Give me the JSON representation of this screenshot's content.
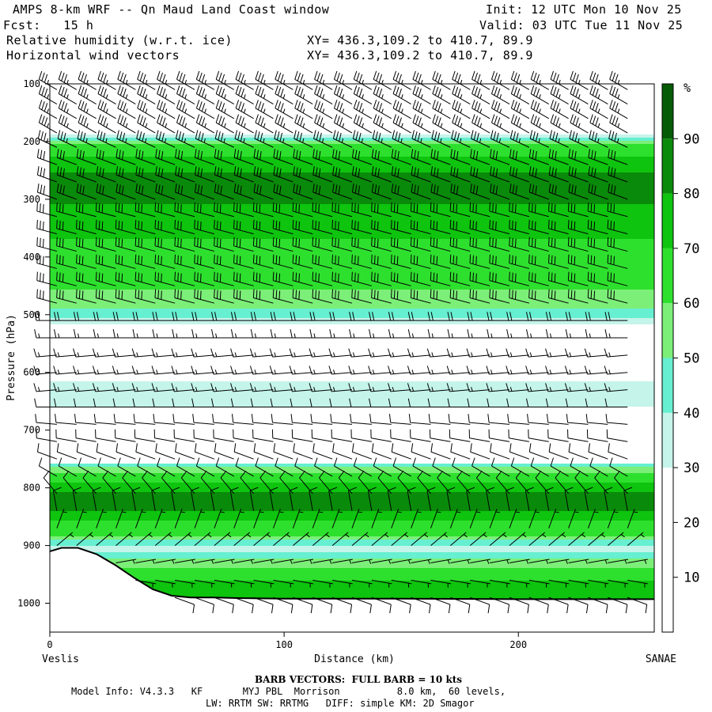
{
  "header": {
    "title": "AMPS 8-km WRF -- Qn Maud Land Coast window",
    "init": "Init: 12 UTC Mon 10 Nov 25",
    "fcst": "Fcst:   15 h",
    "valid": "Valid: 03 UTC Tue 11 Nov 25",
    "field1": "Relative humidity (w.r.t. ice)",
    "field2": "Horizontal wind vectors",
    "xy1": "XY= 436.3,109.2 to 410.7, 89.9",
    "xy2": "XY= 436.3,109.2 to 410.7, 89.9"
  },
  "footer": {
    "barb": "BARB VECTORS:  FULL BARB = 10 kts",
    "model": "Model Info: V4.3.3   KF       MYJ PBL  Morrison          8.0 km,  60 levels,",
    "physics": "LW: RRTM SW: RRTMG   DIFF: simple KM: 2D Smagor"
  },
  "colors": {
    "bins": [
      "#ffffff",
      "#ffffff",
      "#ffffff",
      "#c4f4ea",
      "#66efd0",
      "#7cef78",
      "#2ee02e",
      "#0ec40e",
      "#0a8a0a",
      "#065c06"
    ],
    "terrain": "#000000",
    "barb": "#000000"
  },
  "chart_data": {
    "type": "heatmap",
    "xlabel": "Distance (km)",
    "ylabel": "Pressure (hPa)",
    "xlim": [
      0,
      258
    ],
    "ylim": [
      1050,
      100
    ],
    "x_ticks": [
      0,
      100,
      200
    ],
    "y_ticks": [
      100,
      200,
      300,
      400,
      500,
      600,
      700,
      800,
      900,
      1000
    ],
    "endpoint_left": "Veslis",
    "endpoint_right": "SANAE",
    "colorbar": {
      "unit": "%",
      "levels": [
        0,
        10,
        20,
        30,
        40,
        50,
        60,
        70,
        80,
        90,
        100
      ],
      "tick_labels": [
        "10",
        "20",
        "30",
        "40",
        "50",
        "60",
        "70",
        "80",
        "90"
      ]
    },
    "rh_profile": {
      "pressure": [
        100,
        170,
        180,
        190,
        200,
        215,
        235,
        255,
        275,
        295,
        320,
        350,
        380,
        410,
        440,
        470,
        495,
        510,
        525,
        560,
        600,
        615,
        635,
        655,
        680,
        720,
        750,
        765,
        790,
        810,
        830,
        850,
        880,
        900,
        930,
        960,
        1000
      ],
      "rh": [
        5,
        8,
        20,
        45,
        58,
        66,
        74,
        82,
        86,
        84,
        76,
        72,
        68,
        64,
        62,
        58,
        46,
        36,
        22,
        16,
        22,
        32,
        38,
        32,
        20,
        14,
        20,
        58,
        70,
        82,
        84,
        72,
        60,
        34,
        58,
        70,
        74
      ]
    },
    "terrain": {
      "x": [
        0,
        5,
        12,
        20,
        28,
        36,
        44,
        52,
        60,
        70,
        80,
        100,
        150,
        200,
        258
      ],
      "p": [
        910,
        904,
        904,
        915,
        934,
        956,
        976,
        987,
        990,
        990,
        991,
        992,
        992,
        993,
        993
      ]
    },
    "wind": {
      "levels": [
        110,
        135,
        160,
        185,
        210,
        240,
        270,
        300,
        330,
        360,
        390,
        420,
        450,
        480,
        510,
        540,
        570,
        600,
        630,
        660,
        690,
        720,
        750,
        780,
        810,
        840,
        870,
        900,
        930,
        960,
        990
      ],
      "speed_kts": [
        35,
        35,
        35,
        35,
        33,
        32,
        32,
        30,
        30,
        30,
        30,
        30,
        30,
        30,
        20,
        15,
        15,
        15,
        15,
        12,
        10,
        10,
        10,
        10,
        8,
        8,
        7,
        7,
        5,
        7,
        10
      ],
      "direction_deg": [
        300,
        300,
        300,
        300,
        295,
        290,
        290,
        290,
        285,
        285,
        285,
        285,
        285,
        285,
        270,
        270,
        265,
        265,
        265,
        270,
        275,
        280,
        290,
        300,
        320,
        350,
        20,
        50,
        80,
        100,
        110
      ]
    }
  }
}
